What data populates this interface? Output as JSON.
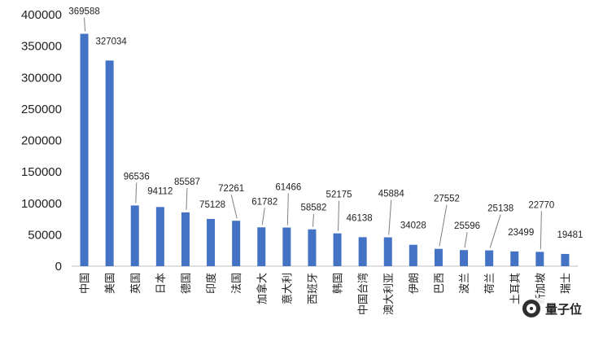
{
  "chart_data": {
    "type": "bar",
    "categories": [
      "中国",
      "美国",
      "英国",
      "日本",
      "德国",
      "印度",
      "法国",
      "加拿大",
      "意大利",
      "西班牙",
      "韩国",
      "中国台湾",
      "澳大利亚",
      "伊朗",
      "巴西",
      "波兰",
      "荷兰",
      "土耳其",
      "新加坡",
      "瑞士"
    ],
    "values": [
      369588,
      327034,
      96536,
      94112,
      85587,
      75128,
      72261,
      61782,
      61466,
      58582,
      52175,
      46138,
      45884,
      34028,
      27552,
      25596,
      25138,
      23499,
      22770,
      19481
    ],
    "ylim": [
      0,
      400000
    ],
    "yticks": [
      0,
      50000,
      100000,
      150000,
      200000,
      250000,
      300000,
      350000,
      400000
    ],
    "ytick_labels": [
      "0",
      "50000",
      "100000",
      "150000",
      "200000",
      "250000",
      "300000",
      "350000",
      "400000"
    ],
    "bar_color": "#4472c4",
    "grid": false,
    "legend": "none"
  },
  "watermark": {
    "text": "量子位",
    "icon": "qbitai-logo-icon"
  }
}
